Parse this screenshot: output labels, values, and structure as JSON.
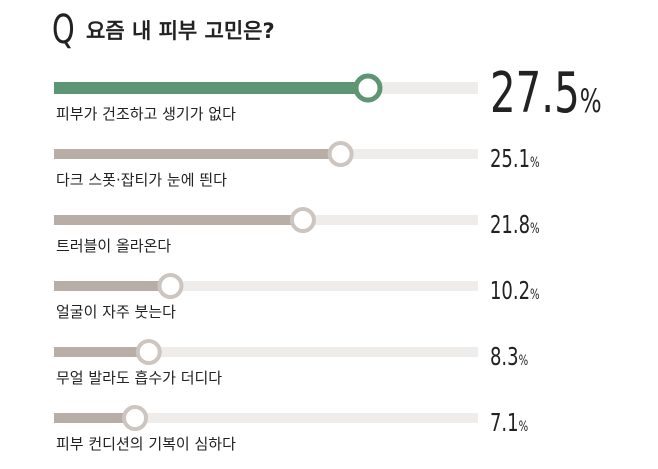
{
  "title": {
    "q_letter": "Q",
    "text": "요즘 내 피부 고민은?"
  },
  "colors": {
    "highlight": "#5e9674",
    "bar": "#b9aea7",
    "track": "#efedec",
    "knob_ring_highlight": "#5e9674",
    "knob_ring": "#cdc5c0"
  },
  "chart_data": {
    "type": "bar",
    "orientation": "horizontal",
    "unit": "%",
    "xlim": [
      0,
      30
    ],
    "categories": [
      "피부가 건조하고 생기가 없다",
      "다크 스폿·잡티가 눈에 띈다",
      "트러블이 올라온다",
      "얼굴이 자주 붓는다",
      "무얼 발라도 흡수가 더디다",
      "피부 컨디션의 기복이 심하다"
    ],
    "values": [
      27.5,
      25.1,
      21.8,
      10.2,
      8.3,
      7.1
    ],
    "value_labels": [
      "27.5",
      "25.1",
      "21.8",
      "10.2",
      "8.3",
      "7.1"
    ],
    "highlighted_index": 0
  }
}
